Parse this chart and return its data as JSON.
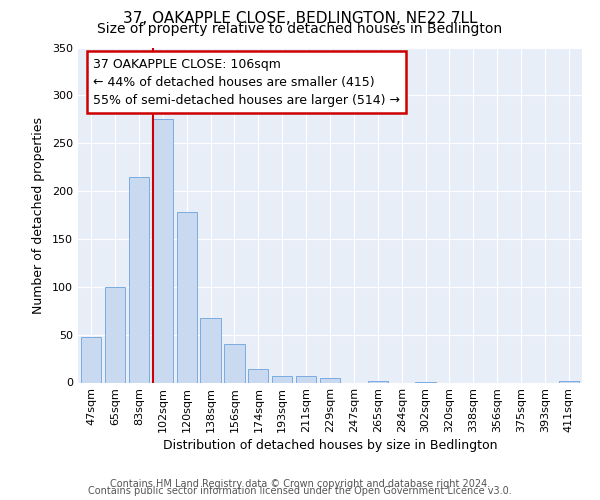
{
  "title": "37, OAKAPPLE CLOSE, BEDLINGTON, NE22 7LL",
  "subtitle": "Size of property relative to detached houses in Bedlington",
  "xlabel": "Distribution of detached houses by size in Bedlington",
  "ylabel": "Number of detached properties",
  "categories": [
    "47sqm",
    "65sqm",
    "83sqm",
    "102sqm",
    "120sqm",
    "138sqm",
    "156sqm",
    "174sqm",
    "193sqm",
    "211sqm",
    "229sqm",
    "247sqm",
    "265sqm",
    "284sqm",
    "302sqm",
    "320sqm",
    "338sqm",
    "356sqm",
    "375sqm",
    "393sqm",
    "411sqm"
  ],
  "values": [
    48,
    100,
    215,
    275,
    178,
    67,
    40,
    14,
    7,
    7,
    5,
    0,
    2,
    0,
    1,
    0,
    0,
    0,
    0,
    0,
    2
  ],
  "bar_color": "#c9d9f0",
  "bar_edge_color": "#7aabe0",
  "vline_color": "#cc0000",
  "annotation_line1": "37 OAKAPPLE CLOSE: 106sqm",
  "annotation_line2": "← 44% of detached houses are smaller (415)",
  "annotation_line3": "55% of semi-detached houses are larger (514) →",
  "annotation_box_edge_color": "#cc0000",
  "ylim": [
    0,
    350
  ],
  "yticks": [
    0,
    50,
    100,
    150,
    200,
    250,
    300,
    350
  ],
  "footer_line1": "Contains HM Land Registry data © Crown copyright and database right 2024.",
  "footer_line2": "Contains public sector information licensed under the Open Government Licence v3.0.",
  "fig_background_color": "#ffffff",
  "plot_background_color": "#e8eef8",
  "grid_color": "#ffffff",
  "title_fontsize": 11,
  "subtitle_fontsize": 10,
  "axis_label_fontsize": 9,
  "tick_fontsize": 8,
  "annotation_fontsize": 9,
  "footer_fontsize": 7
}
